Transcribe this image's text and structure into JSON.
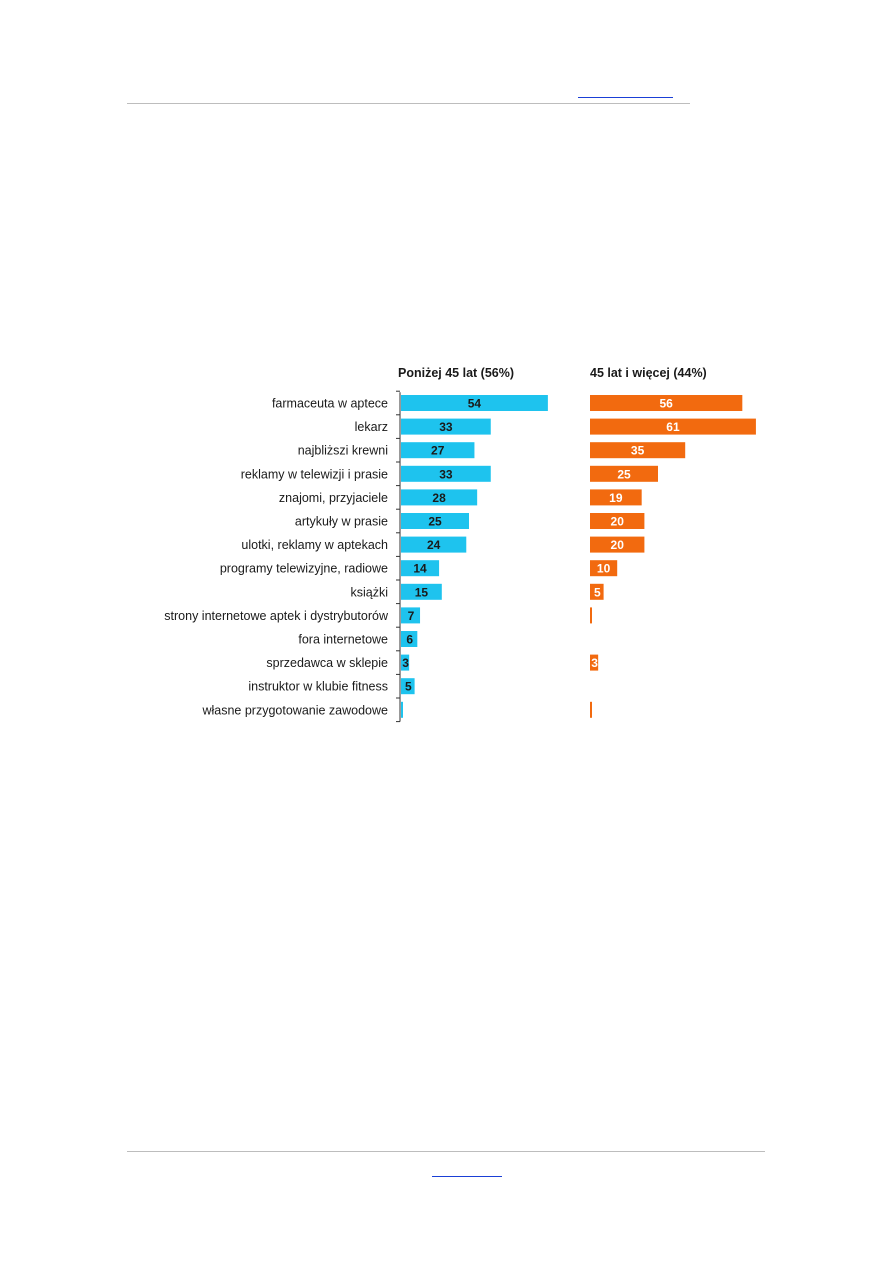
{
  "chart_data": {
    "type": "bar",
    "categories": [
      "farmaceuta w aptece",
      "lekarz",
      "najbliższi krewni",
      "reklamy w telewizji i prasie",
      "znajomi, przyjaciele",
      "artykuły w prasie",
      "ulotki, reklamy w aptekach",
      "programy telewizyjne, radiowe",
      "książki",
      "strony internetowe aptek i dystrybutorów",
      "fora internetowe",
      "sprzedawca w sklepie",
      "instruktor w klubie fitness",
      "własne przygotowanie zawodowe"
    ],
    "series": [
      {
        "name": "Poniżej 45 lat (56%)",
        "color": "#1ec3ee",
        "label_color": "#1a1a1a",
        "values": [
          54,
          33,
          27,
          33,
          28,
          25,
          24,
          14,
          15,
          7,
          6,
          3,
          5,
          0.5
        ],
        "labels": [
          "54",
          "33",
          "27",
          "33",
          "28",
          "25",
          "24",
          "14",
          "15",
          "7",
          "6",
          "3",
          "5",
          ""
        ]
      },
      {
        "name": "45 lat i więcej (44%)",
        "color": "#f26a0f",
        "label_color": "#ffffff",
        "values": [
          56,
          61,
          35,
          25,
          19,
          20,
          20,
          10,
          5,
          0.5,
          0,
          3,
          0,
          0.5
        ],
        "labels": [
          "56",
          "61",
          "35",
          "25",
          "19",
          "20",
          "20",
          "10",
          "5",
          "",
          "",
          "3",
          "",
          ""
        ]
      }
    ]
  }
}
